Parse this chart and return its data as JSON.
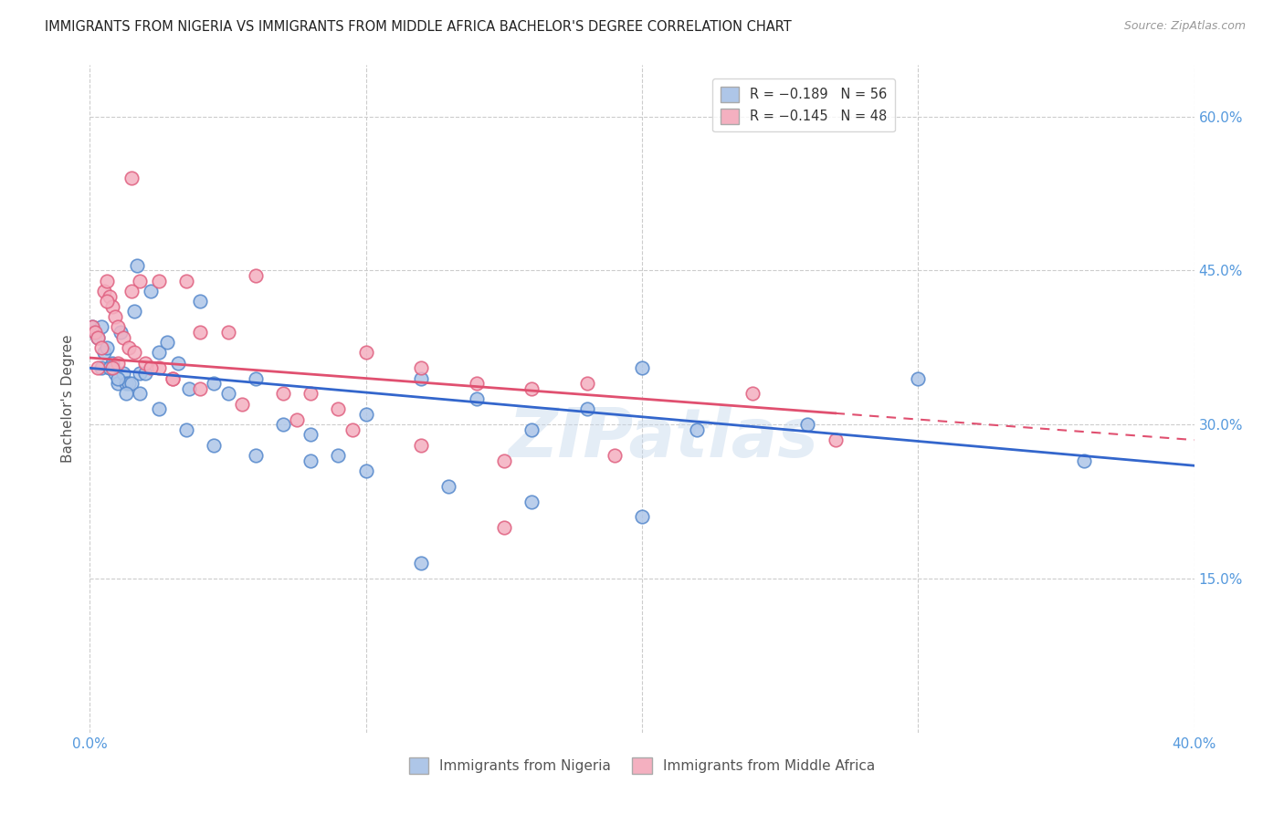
{
  "title": "IMMIGRANTS FROM NIGERIA VS IMMIGRANTS FROM MIDDLE AFRICA BACHELOR'S DEGREE CORRELATION CHART",
  "source": "Source: ZipAtlas.com",
  "ylabel": "Bachelor's Degree",
  "yticks": [
    "60.0%",
    "45.0%",
    "30.0%",
    "15.0%"
  ],
  "ytick_vals": [
    0.6,
    0.45,
    0.3,
    0.15
  ],
  "xlim": [
    0.0,
    0.4
  ],
  "ylim": [
    0.0,
    0.65
  ],
  "series1_label": "Immigrants from Nigeria",
  "series2_label": "Immigrants from Middle Africa",
  "series1_color": "#aec6e8",
  "series2_color": "#f4b0c0",
  "series1_edge": "#5588cc",
  "series2_edge": "#e06080",
  "regression1_color": "#3366cc",
  "regression2_color": "#e05070",
  "watermark": "ZIPatlas",
  "background_color": "#ffffff",
  "grid_color": "#cccccc",
  "axis_color": "#5599dd",
  "nigeria_x": [
    0.001,
    0.002,
    0.003,
    0.004,
    0.005,
    0.006,
    0.007,
    0.008,
    0.009,
    0.01,
    0.011,
    0.012,
    0.013,
    0.014,
    0.015,
    0.016,
    0.017,
    0.018,
    0.02,
    0.022,
    0.025,
    0.028,
    0.032,
    0.036,
    0.04,
    0.045,
    0.05,
    0.06,
    0.07,
    0.08,
    0.09,
    0.1,
    0.12,
    0.14,
    0.16,
    0.18,
    0.2,
    0.22,
    0.26,
    0.3,
    0.004,
    0.007,
    0.01,
    0.013,
    0.018,
    0.025,
    0.035,
    0.045,
    0.06,
    0.08,
    0.1,
    0.13,
    0.16,
    0.2,
    0.36,
    0.12
  ],
  "nigeria_y": [
    0.395,
    0.39,
    0.385,
    0.395,
    0.37,
    0.375,
    0.355,
    0.36,
    0.35,
    0.34,
    0.39,
    0.35,
    0.34,
    0.34,
    0.34,
    0.41,
    0.455,
    0.35,
    0.35,
    0.43,
    0.37,
    0.38,
    0.36,
    0.335,
    0.42,
    0.34,
    0.33,
    0.345,
    0.3,
    0.29,
    0.27,
    0.31,
    0.345,
    0.325,
    0.295,
    0.315,
    0.355,
    0.295,
    0.3,
    0.345,
    0.355,
    0.355,
    0.345,
    0.33,
    0.33,
    0.315,
    0.295,
    0.28,
    0.27,
    0.265,
    0.255,
    0.24,
    0.225,
    0.21,
    0.265,
    0.165
  ],
  "middle_africa_x": [
    0.001,
    0.002,
    0.003,
    0.004,
    0.005,
    0.006,
    0.007,
    0.008,
    0.009,
    0.01,
    0.012,
    0.014,
    0.015,
    0.016,
    0.018,
    0.02,
    0.025,
    0.03,
    0.035,
    0.04,
    0.05,
    0.06,
    0.07,
    0.08,
    0.09,
    0.1,
    0.12,
    0.14,
    0.16,
    0.18,
    0.003,
    0.006,
    0.01,
    0.015,
    0.022,
    0.03,
    0.04,
    0.055,
    0.075,
    0.095,
    0.12,
    0.15,
    0.19,
    0.24,
    0.27,
    0.15,
    0.008,
    0.025
  ],
  "middle_africa_y": [
    0.395,
    0.39,
    0.385,
    0.375,
    0.43,
    0.44,
    0.425,
    0.415,
    0.405,
    0.395,
    0.385,
    0.375,
    0.54,
    0.37,
    0.44,
    0.36,
    0.355,
    0.345,
    0.44,
    0.39,
    0.39,
    0.445,
    0.33,
    0.33,
    0.315,
    0.37,
    0.355,
    0.34,
    0.335,
    0.34,
    0.355,
    0.42,
    0.36,
    0.43,
    0.355,
    0.345,
    0.335,
    0.32,
    0.305,
    0.295,
    0.28,
    0.265,
    0.27,
    0.33,
    0.285,
    0.2,
    0.355,
    0.44
  ],
  "regression1_x0": 0.0,
  "regression1_y0": 0.355,
  "regression1_x1": 0.4,
  "regression1_y1": 0.26,
  "regression2_x0": 0.0,
  "regression2_y0": 0.365,
  "regression2_x1": 0.4,
  "regression2_y1": 0.285,
  "regression2_solid_end": 0.27
}
